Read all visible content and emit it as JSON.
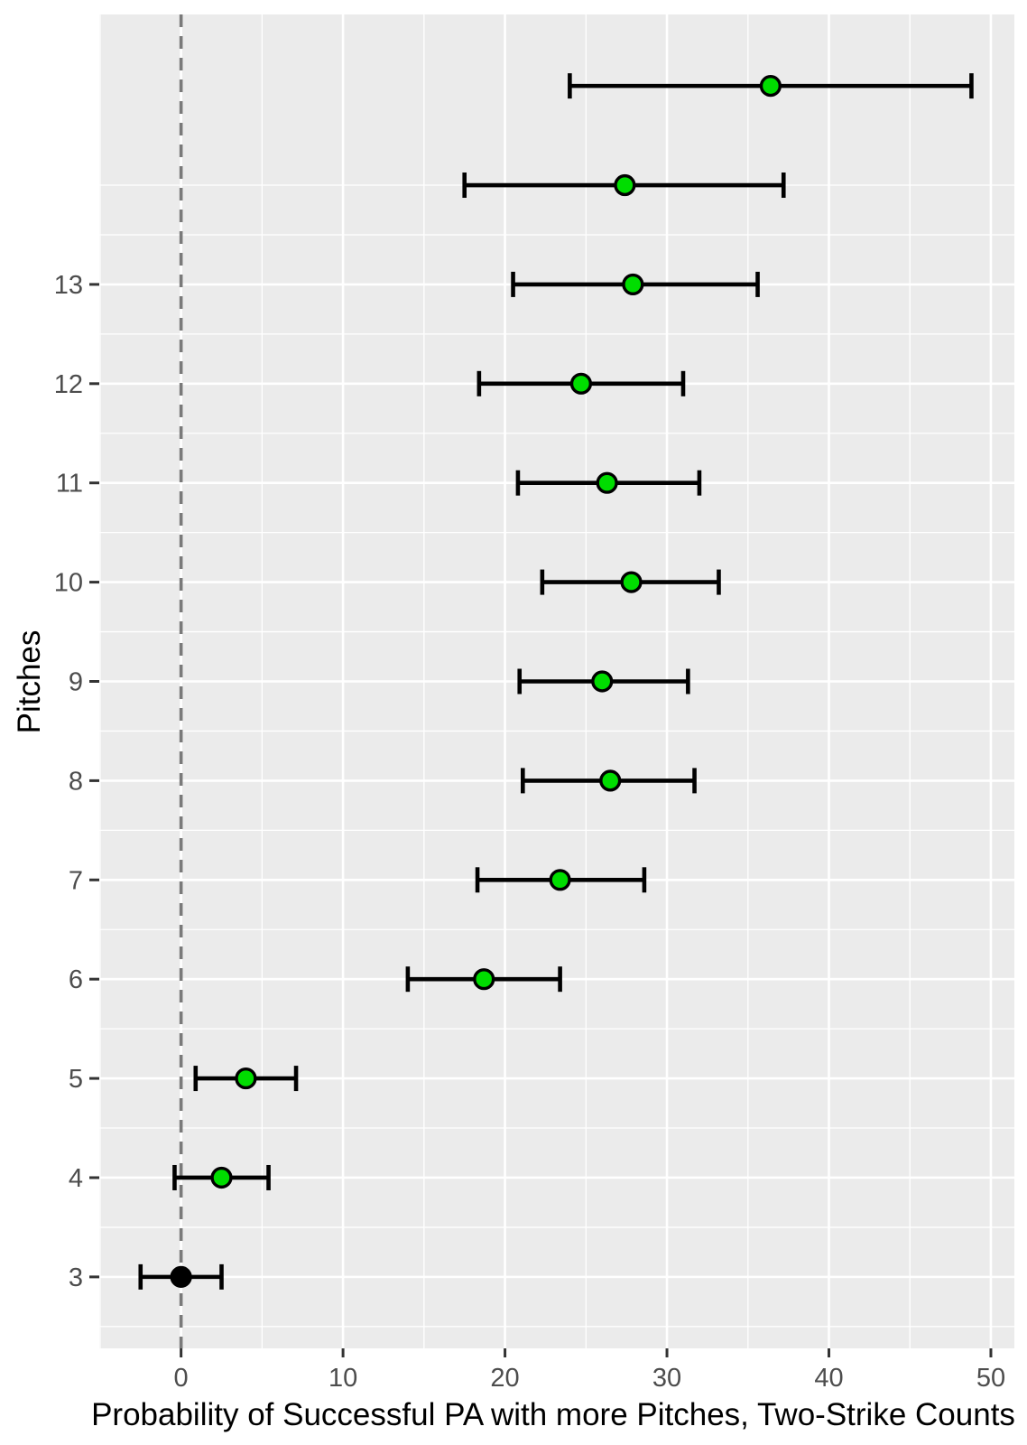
{
  "chart_data": {
    "type": "scatter",
    "subtype": "dot_plot_with_horizontal_error_bars",
    "title": "",
    "xlabel": "Probability of Successful PA with more Pitches, Two-Strike Counts",
    "ylabel": "Pitches",
    "x_ticks": [
      0,
      10,
      20,
      30,
      40,
      50
    ],
    "x_minor_gridlines": [
      -5,
      5,
      15,
      25,
      35,
      45
    ],
    "y_tick_labels": [
      3,
      4,
      5,
      6,
      7,
      8,
      9,
      10,
      11,
      12,
      13
    ],
    "y_minor_gridlines": [
      2.5,
      3.5,
      4.5,
      5.5,
      6.5,
      7.5,
      8.5,
      9.5,
      10.5,
      11.5,
      12.5,
      13.5,
      14
    ],
    "xlim": [
      -5.05,
      51.45
    ],
    "ylim": [
      2.28,
      15.72
    ],
    "reference_line_x": 0,
    "grid": "on",
    "legend": "none",
    "points": [
      {
        "pitches": 3,
        "estimate": 0.0,
        "ci_low": -2.5,
        "ci_high": 2.5,
        "color": "#000000",
        "axis_labeled": true
      },
      {
        "pitches": 4,
        "estimate": 2.5,
        "ci_low": -0.4,
        "ci_high": 5.4,
        "color": "#00DD00",
        "axis_labeled": true
      },
      {
        "pitches": 5,
        "estimate": 4.0,
        "ci_low": 0.9,
        "ci_high": 7.1,
        "color": "#00DD00",
        "axis_labeled": true
      },
      {
        "pitches": 6,
        "estimate": 18.7,
        "ci_low": 14.0,
        "ci_high": 23.4,
        "color": "#00DD00",
        "axis_labeled": true
      },
      {
        "pitches": 7,
        "estimate": 23.4,
        "ci_low": 18.3,
        "ci_high": 28.6,
        "color": "#00DD00",
        "axis_labeled": true
      },
      {
        "pitches": 8,
        "estimate": 26.5,
        "ci_low": 21.1,
        "ci_high": 31.7,
        "color": "#00DD00",
        "axis_labeled": true
      },
      {
        "pitches": 9,
        "estimate": 26.0,
        "ci_low": 20.9,
        "ci_high": 31.3,
        "color": "#00DD00",
        "axis_labeled": true
      },
      {
        "pitches": 10,
        "estimate": 27.8,
        "ci_low": 22.3,
        "ci_high": 33.2,
        "color": "#00DD00",
        "axis_labeled": true
      },
      {
        "pitches": 11,
        "estimate": 26.3,
        "ci_low": 20.8,
        "ci_high": 32.0,
        "color": "#00DD00",
        "axis_labeled": true
      },
      {
        "pitches": 12,
        "estimate": 24.7,
        "ci_low": 18.4,
        "ci_high": 31.0,
        "color": "#00DD00",
        "axis_labeled": true
      },
      {
        "pitches": 13,
        "estimate": 27.9,
        "ci_low": 20.5,
        "ci_high": 35.6,
        "color": "#00DD00",
        "axis_labeled": true
      },
      {
        "pitches": 14,
        "estimate": 27.4,
        "ci_low": 17.5,
        "ci_high": 37.2,
        "color": "#00DD00",
        "axis_labeled": false
      },
      {
        "pitches": 15,
        "estimate": 36.4,
        "ci_low": 24.0,
        "ci_high": 48.8,
        "color": "#00DD00",
        "axis_labeled": false
      }
    ],
    "colors": {
      "panel_background": "#EBEBEB",
      "gridline": "#FFFFFF",
      "point_green": "#00DD00",
      "point_black": "#000000",
      "error_bar": "#000000",
      "reference_line": "#7A7A7A",
      "tick_label": "#4D4D4D",
      "tick_mark": "#333333",
      "axis_title": "#000000"
    }
  }
}
